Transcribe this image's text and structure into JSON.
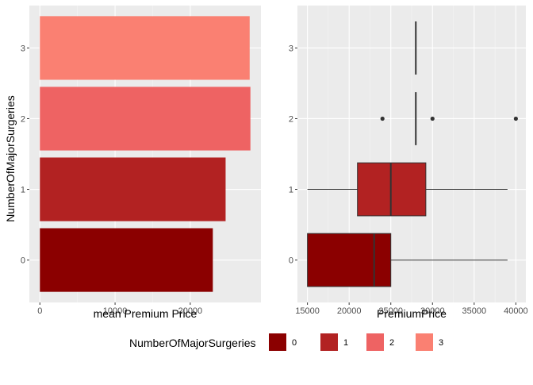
{
  "legend": {
    "title": "NumberOfMajorSurgeries",
    "entries": [
      {
        "label": "0",
        "color": "#8B0000"
      },
      {
        "label": "1",
        "color": "#B22222"
      },
      {
        "label": "2",
        "color": "#EE6363"
      },
      {
        "label": "3",
        "color": "#FA8072"
      }
    ]
  },
  "chart_data": [
    {
      "type": "bar",
      "orientation": "horizontal",
      "categories": [
        "0",
        "1",
        "2",
        "3"
      ],
      "values": [
        23000,
        24700,
        28000,
        27900
      ],
      "colors": [
        "#8B0000",
        "#B22222",
        "#EE6363",
        "#FA8072"
      ],
      "xlabel": "mean Premium Price",
      "ylabel": "NumberOfMajorSurgeries",
      "xlim": [
        -1400,
        29400
      ],
      "xticks": [
        0,
        10000,
        20000
      ],
      "grid": true
    },
    {
      "type": "box",
      "orientation": "horizontal",
      "categories": [
        "0",
        "1",
        "2",
        "3"
      ],
      "xlabel": "PremiumPrice",
      "xlim": [
        13800,
        41200
      ],
      "xticks": [
        15000,
        20000,
        25000,
        30000,
        35000,
        40000
      ],
      "grid": true,
      "boxes": [
        {
          "category": "0",
          "min": 15000,
          "q1": 15000,
          "median": 23000,
          "q3": 25000,
          "max": 39000,
          "outliers": [],
          "color": "#8B0000"
        },
        {
          "category": "1",
          "min": 15000,
          "q1": 21000,
          "median": 25000,
          "q3": 29200,
          "max": 39000,
          "outliers": [],
          "color": "#B22222"
        },
        {
          "category": "2",
          "min": 28000,
          "q1": 28000,
          "median": 28000,
          "q3": 28000,
          "max": 28000,
          "outliers": [
            24000,
            30000,
            40000
          ],
          "color": "#EE6363"
        },
        {
          "category": "3",
          "min": 28000,
          "q1": 28000,
          "median": 28000,
          "q3": 28000,
          "max": 28000,
          "outliers": [],
          "color": "#FA8072"
        }
      ]
    }
  ]
}
